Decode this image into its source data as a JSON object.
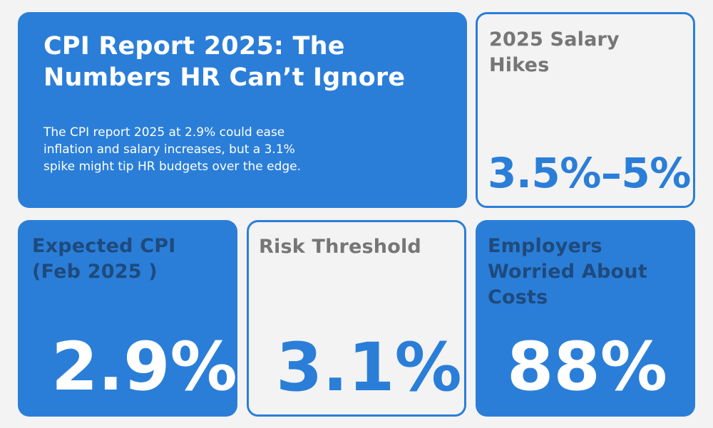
{
  "hero": {
    "title": "CPI Report 2025: The Numbers HR Can’t Ignore",
    "description": "The CPI report 2025 at 2.9% could ease inflation and salary increases, but a 3.1% spike might tip HR budgets over the edge."
  },
  "cards": {
    "salary_hikes": {
      "label": "2025 Salary Hikes",
      "value": "3.5%–5%"
    },
    "expected_cpi": {
      "label": "Expected CPI (Feb 2025 )",
      "value": "2.9%"
    },
    "risk_threshold": {
      "label": "Risk Threshold",
      "value": "3.1%"
    },
    "employers_worried": {
      "label": "Employers Worried About Costs",
      "value": "88%"
    }
  },
  "colors": {
    "accent_blue": "#2a7ed8",
    "dark_blue_label": "#1e4a7d",
    "grey_label": "#767676",
    "background": "#f3f3f3",
    "white": "#ffffff"
  }
}
